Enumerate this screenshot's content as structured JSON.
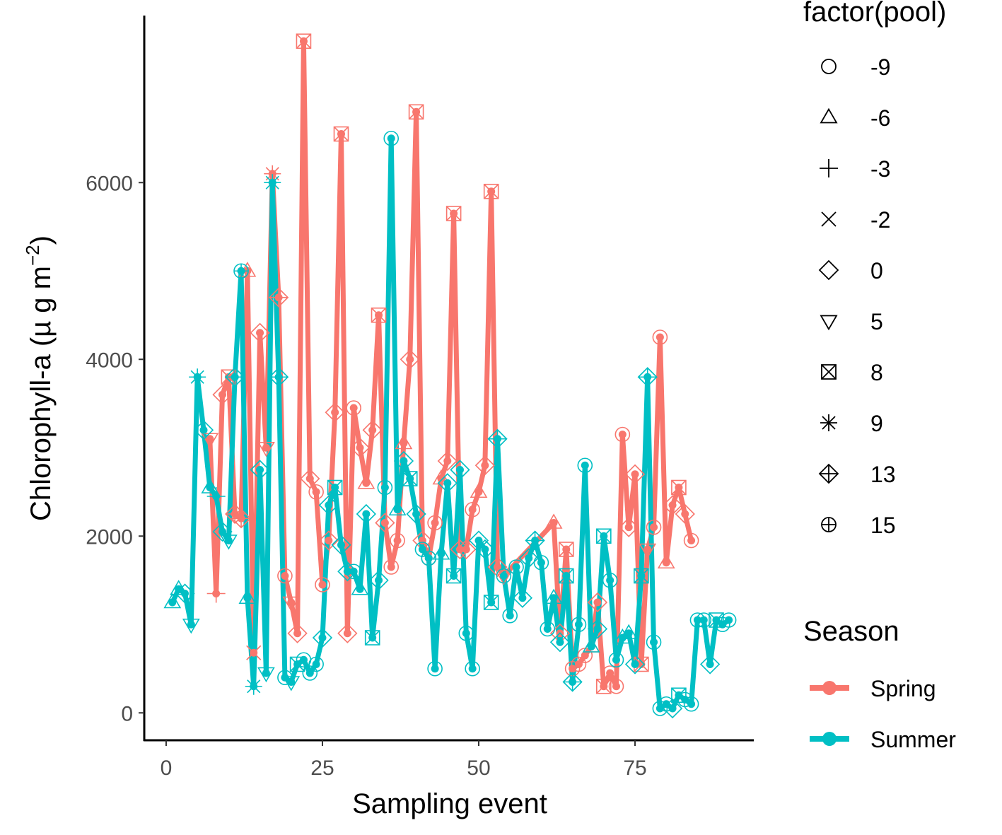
{
  "chart_data": {
    "type": "line",
    "xlabel": "Sampling event",
    "ylabel": "Chlorophyll-a (µ g m⁻²)",
    "ylabel_main": "Chlorophyll-a (µ g m",
    "ylabel_sup": "−2",
    "ylabel_end": ")",
    "xlim": [
      -3.5,
      94
    ],
    "ylim": [
      -310,
      7890
    ],
    "xticks": [
      0,
      25,
      50,
      75
    ],
    "yticks": [
      0,
      2000,
      4000,
      6000
    ],
    "grid": false,
    "legend_position": "right",
    "shape_legend": {
      "title": "factor(pool)",
      "entries": [
        {
          "label": "-9",
          "shape": "circle"
        },
        {
          "label": "-6",
          "shape": "triangle"
        },
        {
          "label": "-3",
          "shape": "plus"
        },
        {
          "label": "-2",
          "shape": "cross"
        },
        {
          "label": "0",
          "shape": "diamond"
        },
        {
          "label": "5",
          "shape": "triangle-down"
        },
        {
          "label": "8",
          "shape": "square-cross"
        },
        {
          "label": "9",
          "shape": "asterisk"
        },
        {
          "label": "13",
          "shape": "diamond-plus"
        },
        {
          "label": "15",
          "shape": "circle-plus"
        }
      ]
    },
    "color_legend": {
      "title": "Season",
      "entries": [
        {
          "label": "Spring",
          "color": "#f8766d"
        },
        {
          "label": "Summer",
          "color": "#00bfc4"
        }
      ]
    },
    "series": [
      {
        "name": "Spring",
        "color": "#f8766d",
        "x": [
          7,
          8,
          9,
          10,
          11,
          12,
          13,
          14,
          15,
          16,
          17,
          18,
          19,
          20,
          21,
          22,
          23,
          24,
          25,
          26,
          27,
          28,
          29,
          30,
          31,
          32,
          33,
          34,
          35,
          36,
          37,
          38,
          39,
          40,
          41,
          42,
          43,
          44,
          45,
          46,
          47,
          48,
          49,
          50,
          51,
          52,
          53,
          54,
          62,
          63,
          64,
          65,
          66,
          67,
          68,
          69,
          70,
          71,
          72,
          73,
          74,
          75,
          76,
          77,
          78,
          79,
          80,
          81,
          82,
          83,
          84
        ],
        "y": [
          3100,
          1350,
          3600,
          3800,
          2250,
          2200,
          5000,
          680,
          4300,
          3000,
          6100,
          4700,
          1550,
          1250,
          900,
          7600,
          2650,
          2500,
          1450,
          1950,
          3400,
          6550,
          900,
          3450,
          3000,
          2600,
          3200,
          4500,
          2150,
          1650,
          1950,
          3050,
          4000,
          6800,
          1950,
          1750,
          2150,
          2650,
          2850,
          5650,
          1850,
          1850,
          2300,
          2500,
          2800,
          5900,
          1650,
          1550,
          2150,
          900,
          1850,
          500,
          550,
          650,
          750,
          1250,
          300,
          450,
          300,
          3150,
          2100,
          2700,
          550,
          1850,
          2100,
          4250,
          1700,
          2350,
          2550,
          2250,
          1950
        ],
        "shapes": [
          "triangle-down",
          "plus",
          "diamond",
          "square-cross",
          "diamond-plus",
          "diamond-plus",
          "triangle",
          "cross",
          "diamond",
          "triangle-down",
          "asterisk",
          "diamond-plus",
          "circle",
          "triangle-down",
          "diamond",
          "square-cross",
          "diamond",
          "circle",
          "circle",
          "diamond",
          "diamond",
          "square-cross",
          "diamond",
          "circle",
          "diamond",
          "triangle",
          "diamond",
          "square-cross",
          "diamond",
          "circle",
          "circle",
          "triangle",
          "diamond",
          "square-cross",
          "diamond",
          "circle",
          "circle",
          "triangle",
          "diamond",
          "square-cross",
          "diamond",
          "diamond",
          "circle",
          "triangle",
          "diamond",
          "square-cross",
          "diamond",
          "triangle-down",
          "triangle",
          "diamond",
          "square-cross",
          "circle",
          "circle",
          "circle",
          "triangle",
          "diamond",
          "square-cross",
          "circle",
          "circle",
          "circle",
          "diamond",
          "diamond",
          "square-cross",
          "triangle-down",
          "circle",
          "circle",
          "triangle",
          "diamond",
          "square-cross",
          "diamond",
          "circle"
        ]
      },
      {
        "name": "Summer",
        "color": "#00bfc4",
        "x": [
          1,
          2,
          3,
          4,
          5,
          6,
          7,
          8,
          9,
          10,
          11,
          12,
          13,
          14,
          15,
          16,
          17,
          18,
          19,
          20,
          21,
          22,
          23,
          24,
          25,
          26,
          27,
          28,
          29,
          30,
          31,
          32,
          33,
          34,
          35,
          36,
          37,
          38,
          39,
          40,
          41,
          42,
          43,
          44,
          45,
          46,
          47,
          48,
          49,
          50,
          51,
          52,
          53,
          54,
          55,
          56,
          57,
          58,
          59,
          60,
          61,
          62,
          63,
          64,
          65,
          66,
          67,
          68,
          69,
          70,
          71,
          72,
          73,
          74,
          75,
          76,
          77,
          78,
          79,
          80,
          81,
          82,
          83,
          84,
          85,
          86,
          87,
          88,
          89,
          90
        ],
        "y": [
          1250,
          1400,
          1350,
          1000,
          3800,
          3200,
          2550,
          2450,
          2050,
          1950,
          3800,
          5000,
          1300,
          300,
          2750,
          450,
          6000,
          3800,
          400,
          350,
          550,
          600,
          450,
          550,
          850,
          2350,
          2550,
          1900,
          1600,
          1600,
          1400,
          2250,
          850,
          1500,
          2550,
          6500,
          2300,
          2850,
          2650,
          2250,
          1850,
          1750,
          500,
          1800,
          2600,
          1550,
          2750,
          900,
          500,
          1950,
          1850,
          1250,
          3100,
          1550,
          1100,
          1650,
          1300,
          1750,
          1950,
          1700,
          950,
          1300,
          800,
          1550,
          350,
          1000,
          2800,
          750,
          950,
          2000,
          1500,
          600,
          850,
          900,
          550,
          1550,
          3800,
          800,
          50,
          100,
          50,
          200,
          150,
          100,
          1050,
          1050,
          550,
          1050,
          1000,
          1050
        ],
        "shapes": [
          "triangle",
          "triangle",
          "diamond",
          "triangle-down",
          "asterisk",
          "diamond",
          "triangle",
          "plus",
          "diamond",
          "triangle-down",
          "diamond-plus",
          "circle-plus",
          "triangle",
          "asterisk",
          "diamond",
          "triangle-down",
          "asterisk",
          "diamond-plus",
          "circle",
          "triangle-down",
          "square-cross",
          "circle",
          "circle",
          "circle",
          "diamond",
          "diamond",
          "square-cross",
          "diamond",
          "diamond",
          "circle",
          "triangle",
          "diamond",
          "square-cross",
          "diamond",
          "circle",
          "circle",
          "triangle",
          "diamond",
          "square-cross",
          "diamond",
          "circle",
          "circle",
          "circle",
          "triangle",
          "diamond",
          "square-cross",
          "diamond",
          "circle",
          "circle",
          "diamond",
          "diamond",
          "square-cross",
          "diamond-plus",
          "circle",
          "circle",
          "circle",
          "diamond",
          "diamond",
          "diamond-plus",
          "circle",
          "circle",
          "triangle",
          "diamond",
          "square-cross",
          "diamond-plus",
          "circle",
          "circle",
          "triangle",
          "diamond",
          "square-cross",
          "circle",
          "circle",
          "triangle",
          "triangle",
          "diamond",
          "square-cross",
          "diamond-plus",
          "circle",
          "circle",
          "circle",
          "diamond",
          "square-cross",
          "circle",
          "circle",
          "circle",
          "circle",
          "diamond",
          "square-cross",
          "circle",
          "circle"
        ]
      }
    ]
  }
}
